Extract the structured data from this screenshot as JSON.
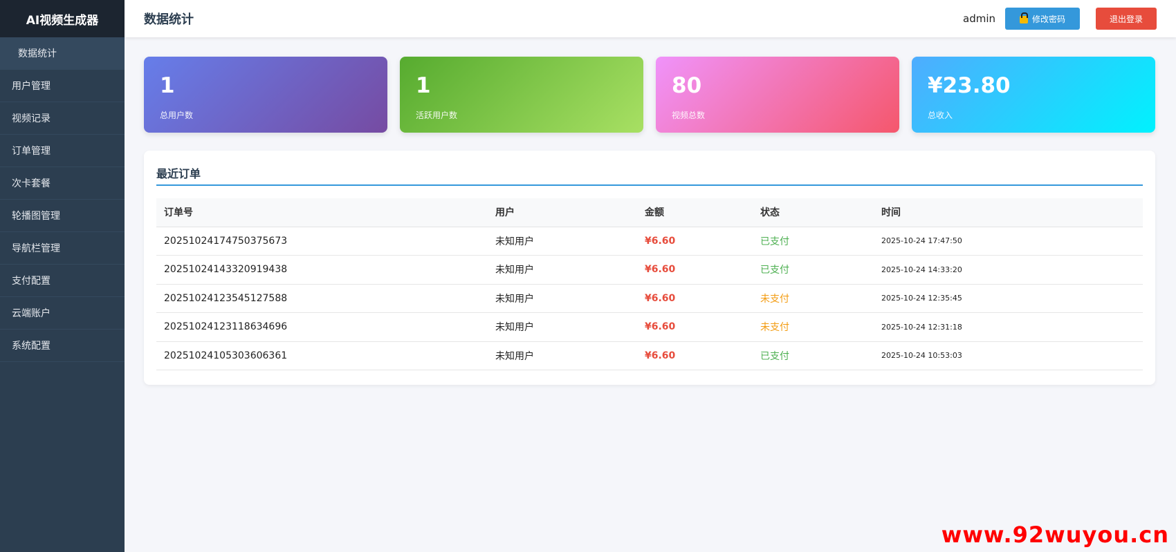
{
  "app_title": "AI视频生成器",
  "sidebar": {
    "items": [
      {
        "label": "数据统计",
        "active": true
      },
      {
        "label": "用户管理"
      },
      {
        "label": "视频记录"
      },
      {
        "label": "订单管理"
      },
      {
        "label": "次卡套餐"
      },
      {
        "label": "轮播图管理"
      },
      {
        "label": "导航栏管理"
      },
      {
        "label": "支付配置"
      },
      {
        "label": "云端账户"
      },
      {
        "label": "系统配置"
      }
    ]
  },
  "header": {
    "title": "数据统计",
    "user": "admin",
    "change_password": "修改密码",
    "logout": "退出登录",
    "icon": "lock-icon"
  },
  "stats": [
    {
      "value": "1",
      "label": "总用户数"
    },
    {
      "value": "1",
      "label": "活跃用户数"
    },
    {
      "value": "80",
      "label": "视频总数"
    },
    {
      "value": "¥23.80",
      "label": "总收入"
    }
  ],
  "orders": {
    "title": "最近订单",
    "columns": [
      "订单号",
      "用户",
      "金额",
      "状态",
      "时间"
    ],
    "rows": [
      {
        "id": "20251024174750375673",
        "user": "未知用户",
        "amount": "¥6.60",
        "status": "已支付",
        "paid": true,
        "time": "2025-10-24 17:47:50"
      },
      {
        "id": "20251024143320919438",
        "user": "未知用户",
        "amount": "¥6.60",
        "status": "已支付",
        "paid": true,
        "time": "2025-10-24 14:33:20"
      },
      {
        "id": "20251024123545127588",
        "user": "未知用户",
        "amount": "¥6.60",
        "status": "未支付",
        "paid": false,
        "time": "2025-10-24 12:35:45"
      },
      {
        "id": "20251024123118634696",
        "user": "未知用户",
        "amount": "¥6.60",
        "status": "未支付",
        "paid": false,
        "time": "2025-10-24 12:31:18"
      },
      {
        "id": "20251024105303606361",
        "user": "未知用户",
        "amount": "¥6.60",
        "status": "已支付",
        "paid": true,
        "time": "2025-10-24 10:53:03"
      }
    ]
  },
  "colors": {
    "sidebar": "#2c3e50",
    "accent": "#3498db",
    "danger": "#e74c3c",
    "paid": "#4caf50",
    "unpaid": "#f39c12"
  },
  "watermark": "www.92wuyou.cn"
}
